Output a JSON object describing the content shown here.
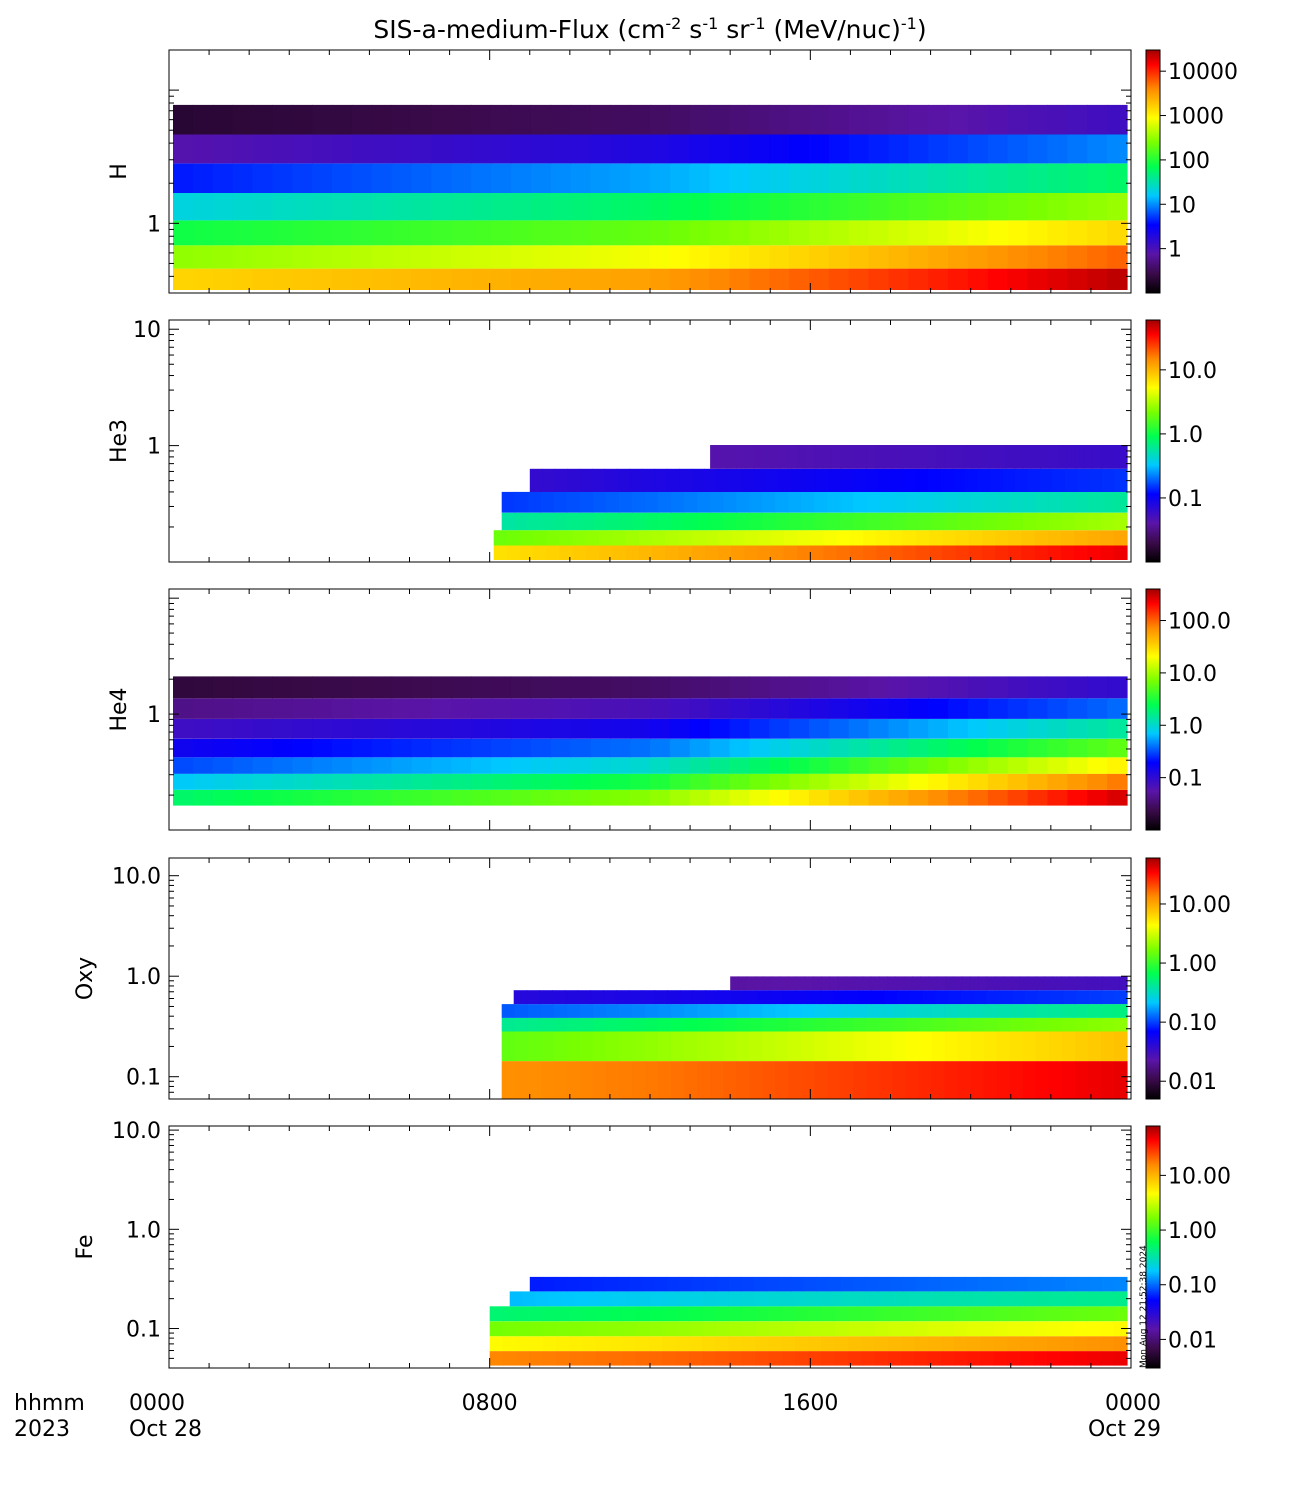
{
  "chart_data": {
    "type": "heatmap",
    "title": {
      "prefix": "SIS-a-medium-Flux (cm",
      "sup1": "-2",
      "mid1": " s",
      "sup2": "-1",
      "mid2": " sr",
      "sup3": "-1",
      "mid3": " (MeV/nuc)",
      "sup4": "-1",
      "suffix": ")"
    },
    "x_axis": {
      "range_hours": [
        0,
        24
      ],
      "ticks": [
        {
          "hour": 0,
          "label": "0000",
          "date": "Oct 28"
        },
        {
          "hour": 8,
          "label": "0800",
          "date": ""
        },
        {
          "hour": 16,
          "label": "1600",
          "date": ""
        },
        {
          "hour": 24,
          "label": "0000",
          "date": "Oct 29"
        }
      ],
      "left_labels": [
        "hhmm",
        "2023"
      ]
    },
    "panels": [
      {
        "ylabel": "H",
        "y_range": [
          0.3,
          20
        ],
        "y_ticks": [
          {
            "value": 1,
            "label": "1"
          }
        ],
        "cbar_range": [
          0.1,
          30000
        ],
        "cbar_ticks": [
          {
            "value": 1,
            "label": "1"
          },
          {
            "value": 10,
            "label": "10"
          },
          {
            "value": 100,
            "label": "100"
          },
          {
            "value": 1000,
            "label": "1000"
          },
          {
            "value": 10000,
            "label": "10000"
          }
        ],
        "data_rows": [
          {
            "energy": 0.38,
            "start_hour": 0.1,
            "end_hour": 23.9,
            "profile": [
              1500,
              3000,
              25000
            ]
          },
          {
            "energy": 0.55,
            "start_hour": 0.1,
            "end_hour": 23.9,
            "profile": [
              300,
              800,
              6000
            ]
          },
          {
            "energy": 0.85,
            "start_hour": 0.1,
            "end_hour": 23.9,
            "profile": [
              80,
              200,
              1500
            ]
          },
          {
            "energy": 1.3,
            "start_hour": 0.1,
            "end_hour": 23.9,
            "profile": [
              20,
              60,
              350
            ]
          },
          {
            "energy": 2.2,
            "start_hour": 0.1,
            "end_hour": 23.9,
            "profile": [
              4,
              12,
              60
            ]
          },
          {
            "energy": 3.6,
            "start_hour": 0.1,
            "end_hour": 23.9,
            "profile": [
              0.8,
              2,
              10
            ]
          },
          {
            "energy": 6.0,
            "start_hour": 0.1,
            "end_hour": 23.9,
            "profile": [
              0.2,
              0.35,
              1.2
            ]
          }
        ]
      },
      {
        "ylabel": "He3",
        "y_range": [
          0.1,
          12
        ],
        "y_ticks": [
          {
            "value": 1,
            "label": "1"
          },
          {
            "value": 10,
            "label": "10"
          }
        ],
        "cbar_range": [
          0.01,
          60
        ],
        "cbar_ticks": [
          {
            "value": 0.1,
            "label": "0.1"
          },
          {
            "value": 1,
            "label": "1.0"
          },
          {
            "value": 10,
            "label": "10.0"
          }
        ],
        "data_rows": [
          {
            "energy": 0.12,
            "start_hour": 8.1,
            "end_hour": 23.9,
            "profile": [
              3,
              10,
              40
            ]
          },
          {
            "energy": 0.16,
            "start_hour": 8.1,
            "end_hour": 23.9,
            "profile": [
              0.8,
              3,
              12
            ]
          },
          {
            "energy": 0.22,
            "start_hour": 8.3,
            "end_hour": 23.9,
            "profile": [
              0.25,
              0.8,
              3
            ]
          },
          {
            "energy": 0.32,
            "start_hour": 8.3,
            "end_hour": 23.9,
            "profile": [
              0.08,
              0.2,
              0.6
            ]
          },
          {
            "energy": 0.5,
            "start_hour": 9.0,
            "end_hour": 23.9,
            "profile": [
              0.03,
              0.08,
              0.15
            ]
          },
          {
            "energy": 0.8,
            "start_hour": 13.5,
            "end_hour": 23.9,
            "profile": [
              0.02,
              0.04,
              0.06
            ]
          }
        ]
      },
      {
        "ylabel": "He4",
        "y_range": [
          0.1,
          12
        ],
        "y_ticks": [
          {
            "value": 1,
            "label": "1"
          }
        ],
        "cbar_range": [
          0.01,
          400
        ],
        "cbar_ticks": [
          {
            "value": 0.1,
            "label": "0.1"
          },
          {
            "value": 1,
            "label": "1.0"
          },
          {
            "value": 10,
            "label": "10.0"
          },
          {
            "value": 100,
            "label": "100.0"
          }
        ],
        "data_rows": [
          {
            "energy": 0.19,
            "start_hour": 0.1,
            "end_hour": 23.9,
            "profile": [
              2,
              8,
              300
            ]
          },
          {
            "energy": 0.26,
            "start_hour": 0.1,
            "end_hour": 23.9,
            "profile": [
              0.7,
              3,
              90
            ]
          },
          {
            "energy": 0.36,
            "start_hour": 0.1,
            "end_hour": 23.9,
            "profile": [
              0.3,
              1,
              25
            ]
          },
          {
            "energy": 0.5,
            "start_hour": 0.1,
            "end_hour": 23.9,
            "profile": [
              0.15,
              0.4,
              6
            ]
          },
          {
            "energy": 0.75,
            "start_hour": 0.1,
            "end_hour": 23.9,
            "profile": [
              0.08,
              0.15,
              1.5
            ]
          },
          {
            "energy": 1.1,
            "start_hour": 0.1,
            "end_hour": 23.9,
            "profile": [
              0.04,
              0.07,
              0.4
            ]
          },
          {
            "energy": 1.7,
            "start_hour": 0.1,
            "end_hour": 23.9,
            "profile": [
              0.02,
              0.03,
              0.1
            ]
          }
        ]
      },
      {
        "ylabel": "Oxy",
        "y_range": [
          0.06,
          15
        ],
        "y_ticks": [
          {
            "value": 0.1,
            "label": "0.1"
          },
          {
            "value": 1,
            "label": "1.0"
          },
          {
            "value": 10,
            "label": "10.0"
          }
        ],
        "cbar_range": [
          0.005,
          60
        ],
        "cbar_ticks": [
          {
            "value": 0.01,
            "label": "0.01"
          },
          {
            "value": 0.1,
            "label": "0.10"
          },
          {
            "value": 1,
            "label": "1.00"
          },
          {
            "value": 10,
            "label": "10.00"
          }
        ],
        "data_rows": [
          {
            "energy": 0.085,
            "start_hour": 8.3,
            "end_hour": 23.9,
            "profile": [
              8,
              15,
              40
            ]
          },
          {
            "energy": 0.24,
            "start_hour": 8.3,
            "end_hour": 23.9,
            "profile": [
              0.6,
              2,
              8
            ]
          },
          {
            "energy": 0.33,
            "start_hour": 8.3,
            "end_hour": 23.9,
            "profile": [
              0.2,
              0.6,
              2
            ]
          },
          {
            "energy": 0.45,
            "start_hour": 8.3,
            "end_hour": 23.9,
            "profile": [
              0.06,
              0.15,
              0.5
            ]
          },
          {
            "energy": 0.62,
            "start_hour": 8.6,
            "end_hour": 23.9,
            "profile": [
              0.03,
              0.05,
              0.1
            ]
          },
          {
            "energy": 0.85,
            "start_hour": 14.0,
            "end_hour": 23.9,
            "profile": [
              0.015,
              0.02,
              0.03
            ]
          }
        ]
      },
      {
        "ylabel": "Fe",
        "y_range": [
          0.04,
          11
        ],
        "y_ticks": [
          {
            "value": 0.1,
            "label": "0.1"
          },
          {
            "value": 1,
            "label": "1.0"
          },
          {
            "value": 10,
            "label": "10.0"
          }
        ],
        "cbar_range": [
          0.003,
          80
        ],
        "cbar_ticks": [
          {
            "value": 0.01,
            "label": "0.01"
          },
          {
            "value": 0.1,
            "label": "0.10"
          },
          {
            "value": 1,
            "label": "1.00"
          },
          {
            "value": 10,
            "label": "10.00"
          }
        ],
        "data_rows": [
          {
            "energy": 0.05,
            "start_hour": 8.0,
            "end_hour": 23.9,
            "profile": [
              10,
              20,
              50
            ]
          },
          {
            "energy": 0.07,
            "start_hour": 8.0,
            "end_hour": 23.9,
            "profile": [
              3,
              6,
              15
            ]
          },
          {
            "energy": 0.1,
            "start_hour": 8.0,
            "end_hour": 23.9,
            "profile": [
              1,
              2,
              5
            ]
          },
          {
            "energy": 0.14,
            "start_hour": 8.0,
            "end_hour": 23.9,
            "profile": [
              0.3,
              0.6,
              1.5
            ]
          },
          {
            "energy": 0.2,
            "start_hour": 8.5,
            "end_hour": 23.9,
            "profile": [
              0.1,
              0.2,
              0.4
            ]
          },
          {
            "energy": 0.28,
            "start_hour": 9.0,
            "end_hour": 23.9,
            "profile": [
              0.04,
              0.07,
              0.12
            ]
          }
        ]
      }
    ],
    "colorbar": "rainbow (black-purple-blue-cyan-green-yellow-orange-red), log scale",
    "timestamp": "Mon Aug 12 21:52:38 2024"
  }
}
